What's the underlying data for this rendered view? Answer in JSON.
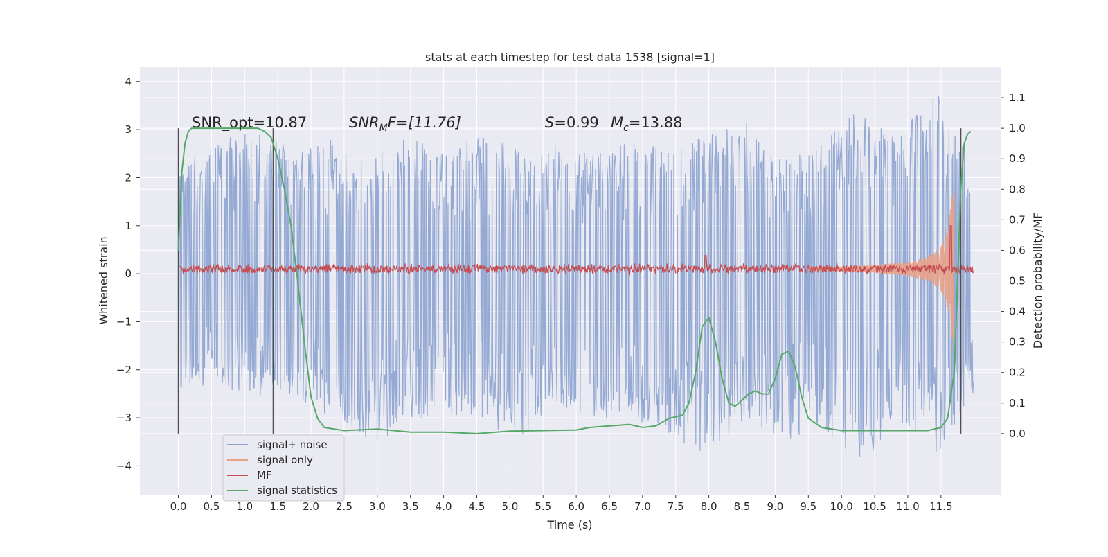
{
  "chart_data": {
    "type": "line",
    "title": "stats at each timestep for test data 1538 [signal=1]",
    "xlabel": "Time (s)",
    "ylabel_left": "Whitened strain",
    "ylabel_right": "Detection probability/MF",
    "xlim": [
      -0.58,
      12.4
    ],
    "ylim_left": [
      -4.6,
      4.3
    ],
    "ylim_right": [
      -0.2,
      1.2
    ],
    "x_ticks": [
      "0.0",
      "0.5",
      "1.0",
      "1.5",
      "2.0",
      "2.5",
      "3.0",
      "3.5",
      "4.0",
      "4.5",
      "5.0",
      "5.5",
      "6.0",
      "6.5",
      "7.0",
      "7.5",
      "8.0",
      "8.5",
      "9.0",
      "9.5",
      "10.0",
      "10.5",
      "11.0",
      "11.5"
    ],
    "y_ticks_left": [
      "4",
      "3",
      "2",
      "1",
      "0",
      "−1",
      "−2",
      "−3",
      "−4"
    ],
    "y_ticks_right": [
      "1.1",
      "1.0",
      "0.9",
      "0.8",
      "0.7",
      "0.6",
      "0.5",
      "0.4",
      "0.3",
      "0.2",
      "0.1",
      "0.0"
    ],
    "grid": true,
    "legend_position": "bottom-left",
    "annotations": {
      "snr_opt": "SNR_opt=10.87",
      "snr_mf_prefix": "SNR",
      "snr_mf_sub": "M",
      "snr_mf_suffix": "F=[11.76]",
      "s_var": "S",
      "s_val": "=0.99",
      "mc_var": "M",
      "mc_sub": "c",
      "mc_val": "=13.88"
    },
    "vertical_markers": [
      0.0,
      1.43,
      11.8
    ],
    "series": [
      {
        "name": "signal+ noise",
        "color": "#8fa5d1",
        "x_range": [
          0.0,
          11.99
        ],
        "envelope_upper_approx": [
          2.3,
          2.7,
          3.1,
          2.6,
          2.8,
          2.4,
          2.9,
          2.5,
          3.0,
          2.6,
          2.7,
          2.5,
          2.8,
          2.6,
          2.9,
          3.2,
          2.4,
          2.7,
          3.5,
          2.8,
          3.9,
          2.2
        ],
        "envelope_lower_approx": [
          -2.4,
          -2.3,
          -2.6,
          -2.5,
          -3.0,
          -3.7,
          -3.1,
          -2.9,
          -3.2,
          -3.5,
          -2.7,
          -3.1,
          -3.0,
          -3.4,
          -3.8,
          -3.0,
          -3.5,
          -3.2,
          -4.1,
          -3.0,
          -3.9,
          -2.5
        ]
      },
      {
        "name": "signal only",
        "color": "#e8a28a",
        "x": [
          9.5,
          10.0,
          10.5,
          11.0,
          11.3,
          11.5,
          11.6,
          11.65,
          11.7
        ],
        "amplitude": [
          0.03,
          0.05,
          0.08,
          0.15,
          0.25,
          0.45,
          0.8,
          1.3,
          1.8
        ]
      },
      {
        "name": "MF",
        "color": "#c44e52",
        "x_range": [
          0.0,
          11.99
        ],
        "baseline": 0.1,
        "noise_amplitude": 0.12,
        "spikes": [
          [
            7.95,
            0.38
          ],
          [
            11.65,
            1.0
          ]
        ]
      },
      {
        "name": "signal statistics",
        "color": "#55a868",
        "x": [
          0.0,
          0.05,
          0.1,
          0.15,
          0.2,
          0.3,
          0.5,
          0.8,
          1.0,
          1.2,
          1.3,
          1.4,
          1.5,
          1.6,
          1.7,
          1.8,
          1.9,
          2.0,
          2.1,
          2.2,
          2.5,
          3.0,
          3.5,
          4.0,
          4.5,
          5.0,
          5.5,
          6.0,
          6.2,
          6.5,
          6.8,
          7.0,
          7.2,
          7.4,
          7.6,
          7.7,
          7.8,
          7.9,
          8.0,
          8.1,
          8.2,
          8.3,
          8.4,
          8.5,
          8.6,
          8.7,
          8.8,
          8.9,
          9.0,
          9.1,
          9.2,
          9.3,
          9.4,
          9.5,
          9.7,
          10.0,
          10.5,
          11.0,
          11.3,
          11.5,
          11.6,
          11.7,
          11.75,
          11.8,
          11.85,
          11.9,
          11.95
        ],
        "y": [
          0.6,
          0.85,
          0.95,
          0.99,
          1.0,
          1.0,
          1.0,
          1.0,
          1.0,
          1.0,
          0.99,
          0.97,
          0.9,
          0.8,
          0.68,
          0.5,
          0.3,
          0.12,
          0.05,
          0.02,
          0.01,
          0.015,
          0.005,
          0.005,
          0.0,
          0.008,
          0.01,
          0.012,
          0.02,
          0.025,
          0.03,
          0.02,
          0.025,
          0.05,
          0.06,
          0.1,
          0.2,
          0.35,
          0.38,
          0.3,
          0.18,
          0.1,
          0.09,
          0.11,
          0.13,
          0.14,
          0.13,
          0.13,
          0.18,
          0.26,
          0.27,
          0.22,
          0.12,
          0.05,
          0.02,
          0.01,
          0.01,
          0.01,
          0.01,
          0.02,
          0.05,
          0.2,
          0.5,
          0.8,
          0.95,
          0.98,
          0.99
        ]
      }
    ]
  }
}
